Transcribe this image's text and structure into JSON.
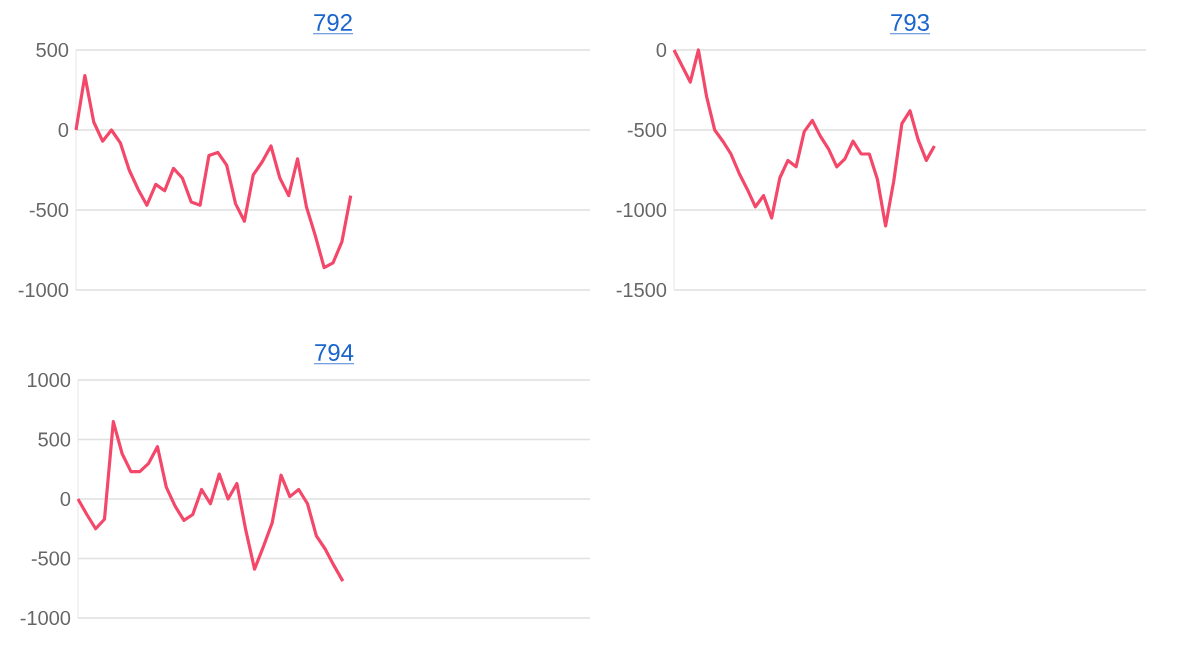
{
  "chart_data": [
    {
      "type": "line",
      "title": "792",
      "categories": [
        null,
        null,
        null,
        null,
        null,
        null,
        null,
        null,
        null,
        null,
        null,
        null,
        null,
        null,
        null,
        null,
        null,
        null,
        null,
        null,
        null,
        null,
        null,
        null,
        null,
        null,
        null,
        null,
        null,
        null,
        null,
        null,
        null,
        null,
        null,
        null,
        null,
        null,
        null,
        null,
        null,
        null,
        null,
        null,
        null,
        null,
        null,
        null,
        null,
        null,
        null,
        null,
        null,
        null,
        null,
        null,
        null,
        null,
        null
      ],
      "series": [
        {
          "color": "#f4486b",
          "values": [
            0,
            340,
            50,
            -70,
            0,
            -80,
            -250,
            -370,
            -470,
            -340,
            -380,
            -240,
            -300,
            -450,
            -470,
            -160,
            -140,
            -220,
            -460,
            -570,
            -280,
            -200,
            -100,
            -300,
            -410,
            -180,
            -480,
            -660,
            -860,
            -830,
            -700,
            -410,
            null,
            null,
            null,
            null,
            null,
            null,
            null,
            null,
            null,
            null,
            null,
            null,
            null,
            null,
            null,
            null,
            null,
            null,
            null,
            null,
            null,
            null,
            null,
            null,
            null,
            null,
            null
          ]
        }
      ],
      "ylim": [
        -1000,
        500
      ],
      "yticks": [
        -1000,
        -500,
        0,
        500
      ],
      "grid": "y",
      "tick_labels": "y"
    },
    {
      "type": "line",
      "title": "793",
      "categories": [
        null,
        null,
        null,
        null,
        null,
        null,
        null,
        null,
        null,
        null,
        null,
        null,
        null,
        null,
        null,
        null,
        null,
        null,
        null,
        null,
        null,
        null,
        null,
        null,
        null,
        null,
        null,
        null,
        null,
        null,
        null,
        null,
        null,
        null,
        null,
        null,
        null,
        null,
        null,
        null,
        null,
        null,
        null,
        null,
        null,
        null,
        null,
        null,
        null,
        null,
        null,
        null,
        null,
        null,
        null,
        null,
        null,
        null,
        null
      ],
      "series": [
        {
          "color": "#f4486b",
          "values": [
            0,
            -100,
            -200,
            0,
            -290,
            -500,
            -570,
            -650,
            -770,
            -870,
            -980,
            -910,
            -1050,
            -800,
            -690,
            -730,
            -510,
            -440,
            -540,
            -620,
            -730,
            -680,
            -570,
            -650,
            -650,
            -810,
            -1100,
            -820,
            -460,
            -380,
            -560,
            -690,
            -600,
            null,
            null,
            null,
            null,
            null,
            null,
            null,
            null,
            null,
            null,
            null,
            null,
            null,
            null,
            null,
            null,
            null,
            null,
            null,
            null,
            null,
            null,
            null,
            null,
            null,
            null
          ]
        }
      ],
      "ylim": [
        -1500,
        0
      ],
      "yticks": [
        -1500,
        -1000,
        -500,
        0
      ],
      "grid": "y",
      "tick_labels": "y"
    },
    {
      "type": "line",
      "title": "794",
      "categories": [
        null,
        null,
        null,
        null,
        null,
        null,
        null,
        null,
        null,
        null,
        null,
        null,
        null,
        null,
        null,
        null,
        null,
        null,
        null,
        null,
        null,
        null,
        null,
        null,
        null,
        null,
        null,
        null,
        null,
        null,
        null,
        null,
        null,
        null,
        null,
        null,
        null,
        null,
        null,
        null,
        null,
        null,
        null,
        null,
        null,
        null,
        null,
        null,
        null,
        null,
        null,
        null,
        null,
        null,
        null,
        null,
        null,
        null,
        null
      ],
      "series": [
        {
          "color": "#f4486b",
          "values": [
            0,
            -130,
            -250,
            -170,
            650,
            380,
            230,
            230,
            300,
            440,
            100,
            -60,
            -180,
            -130,
            80,
            -40,
            210,
            0,
            130,
            -260,
            -590,
            -400,
            -200,
            200,
            20,
            80,
            -40,
            -310,
            -420,
            -560,
            -690,
            null,
            null,
            null,
            null,
            null,
            null,
            null,
            null,
            null,
            null,
            null,
            null,
            null,
            null,
            null,
            null,
            null,
            null,
            null,
            null,
            null,
            null,
            null,
            null,
            null,
            null,
            null,
            null
          ]
        }
      ],
      "ylim": [
        -1000,
        1000
      ],
      "yticks": [
        -1000,
        -500,
        0,
        500,
        1000
      ],
      "grid": "y",
      "tick_labels": "y"
    }
  ]
}
